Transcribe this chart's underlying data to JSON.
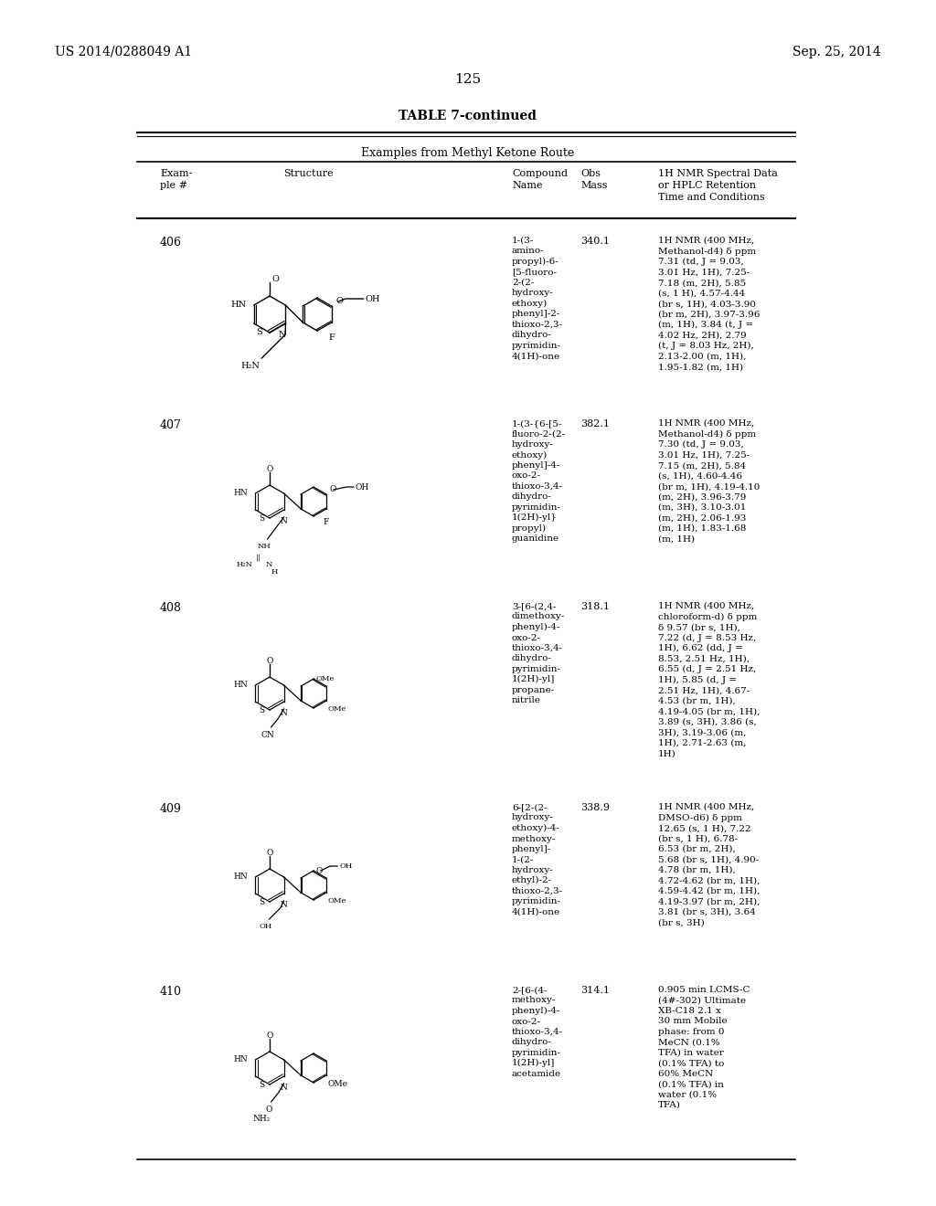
{
  "page_header_left": "US 2014/0288049 A1",
  "page_header_right": "Sep. 25, 2014",
  "page_number": "125",
  "table_title": "TABLE 7-continued",
  "table_subtitle": "Examples from Methyl Ketone Route",
  "col_headers": [
    "Exam-\nple #",
    "Structure",
    "Compound\nName",
    "Obs\nMass",
    "1H NMR Spectral Data\nor HPLC Retention\nTime and Conditions"
  ],
  "background_color": "#ffffff",
  "text_color": "#000000",
  "rows": [
    {
      "example": "406",
      "compound_name": "1-(3-\namino-\npropyl)-6-\n[5-fluoro-\n2-(2-\nhydroxy-\nethoxy)\nphenyl]-2-\nthioxo-2,3-\ndihydro-\npyrimidin-\n4(1H)-one",
      "obs_mass": "340.1",
      "nmr": "1H NMR (400 MHz,\nMethanol-d4) δ ppm\n7.31 (td, J = 9.03,\n3.01 Hz, 1H), 7.25-\n7.18 (m, 2H), 5.85\n(s, 1 H), 4.57-4.44\n(br s, 1H), 4.03-3.90\n(br m, 2H), 3.97-3.96\n(m, 1H), 3.84 (t, J =\n4.02 Hz, 2H), 2.79\n(t, J = 8.03 Hz, 2H),\n2.13-2.00 (m, 1H),\n1.95-1.82 (m, 1H)"
    },
    {
      "example": "407",
      "compound_name": "1-(3-{6-[5-\nfluoro-2-(2-\nhydroxy-\nethoxy)\nphenyl]-4-\noxo-2-\nthioxo-3,4-\ndihydro-\npyrimidin-\n1(2H)-yl}\npropyl)\nguanidine",
      "obs_mass": "382.1",
      "nmr": "1H NMR (400 MHz,\nMethanol-d4) δ ppm\n7.30 (td, J = 9.03,\n3.01 Hz, 1H), 7.25-\n7.15 (m, 2H), 5.84\n(s, 1H), 4.60-4.46\n(br m, 1H), 4.19-4.10\n(m, 2H), 3.96-3.79\n(m, 3H), 3.10-3.01\n(m, 2H), 2.06-1.93\n(m, 1H), 1.83-1.68\n(m, 1H)"
    },
    {
      "example": "408",
      "compound_name": "3-[6-(2,4-\ndimethoxy-\nphenyl)-4-\noxo-2-\nthioxo-3,4-\ndihydro-\npyrimidin-\n1(2H)-yl]\npropane-\nnitrile",
      "obs_mass": "318.1",
      "nmr": "1H NMR (400 MHz,\nchloroform-d) δ ppm\nδ 9.57 (br s, 1H),\n7.22 (d, J = 8.53 Hz,\n1H), 6.62 (dd, J =\n8.53, 2.51 Hz, 1H),\n6.55 (d, J = 2.51 Hz,\n1H), 5.85 (d, J =\n2.51 Hz, 1H), 4.67-\n4.53 (br m, 1H),\n4.19-4.05 (br m, 1H),\n3.89 (s, 3H), 3.86 (s,\n3H), 3.19-3.06 (m,\n1H), 2.71-2.63 (m,\n1H)"
    },
    {
      "example": "409",
      "compound_name": "6-[2-(2-\nhydroxy-\nethoxy)-4-\nmethoxy-\nphenyl]-\n1-(2-\nhydroxy-\nethyl)-2-\nthioxo-2,3-\npyrimidin-\n4(1H)-one",
      "obs_mass": "338.9",
      "nmr": "1H NMR (400 MHz,\nDMSO-d6) δ ppm\n12.65 (s, 1 H), 7.22\n(br s, 1 H), 6.78-\n6.53 (br m, 2H),\n5.68 (br s, 1H), 4.90-\n4.78 (br m, 1H),\n4.72-4.62 (br m, 1H),\n4.59-4.42 (br m, 1H),\n4.19-3.97 (br m, 2H),\n3.81 (br s, 3H), 3.64\n(br s, 3H)"
    },
    {
      "example": "410",
      "compound_name": "2-[6-(4-\nmethoxy-\nphenyl)-4-\noxo-2-\nthioxo-3,4-\ndihydro-\npyrimidin-\n1(2H)-yl]\nacetamide",
      "obs_mass": "314.1",
      "nmr": "0.905 min LCMS-C\n(4#-302) Ultimate\nXB-C18 2.1 x\n30 mm Mobile\nphase: from 0\nMeCN (0.1%\nTFA) in water\n(0.1% TFA) to\n60% MeCN\n(0.1% TFA) in\nwater (0.1%\nTFA)"
    }
  ]
}
